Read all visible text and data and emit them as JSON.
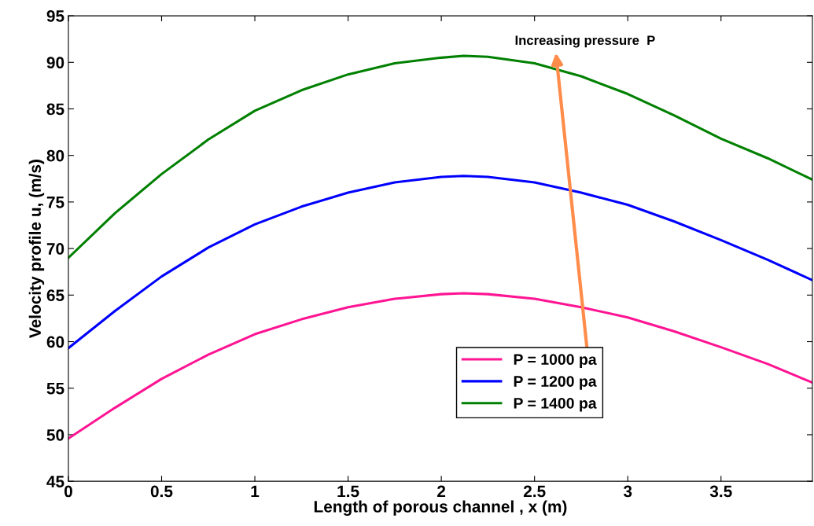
{
  "chart_data": {
    "type": "line",
    "xlabel": "Length of porous channel , x (m)",
    "ylabel": "Velocity profile u, (m/s)",
    "x": [
      0,
      0.25,
      0.5,
      0.75,
      1,
      1.25,
      1.5,
      1.75,
      2,
      2.12,
      2.25,
      2.5,
      2.75,
      3,
      3.25,
      3.5,
      3.75,
      3.99
    ],
    "series": [
      {
        "name": "P = 1000 pa",
        "color": "#ff1493",
        "values": [
          49.6,
          52.9,
          56,
          58.6,
          60.8,
          62.4,
          63.7,
          64.6,
          65.1,
          65.2,
          65.1,
          64.6,
          63.7,
          62.6,
          61.1,
          59.4,
          57.6,
          55.6
        ]
      },
      {
        "name": "P = 1200 pa",
        "color": "#0000ff",
        "values": [
          59.3,
          63.3,
          67,
          70.1,
          72.6,
          74.5,
          76,
          77.1,
          77.7,
          77.8,
          77.7,
          77.1,
          76,
          74.7,
          72.9,
          70.9,
          68.8,
          66.6
        ]
      },
      {
        "name": "P = 1400 pa",
        "color": "#008000",
        "values": [
          69,
          73.8,
          78,
          81.7,
          84.8,
          87,
          88.7,
          89.9,
          90.5,
          90.7,
          90.6,
          89.9,
          88.5,
          86.6,
          84.3,
          81.8,
          79.7,
          77.4
        ]
      }
    ],
    "annotations": [
      "Increasing pressure  P"
    ],
    "xlim": [
      0,
      3.99
    ],
    "xticks": [
      0,
      0.5,
      1,
      1.5,
      2,
      2.5,
      3,
      3.5
    ],
    "ylim": [
      45,
      95
    ],
    "yticks": [
      45,
      50,
      55,
      60,
      65,
      70,
      75,
      80,
      85,
      90,
      95
    ],
    "grid": false,
    "legend": "bottom",
    "marker": "none",
    "line_style": "solid"
  }
}
